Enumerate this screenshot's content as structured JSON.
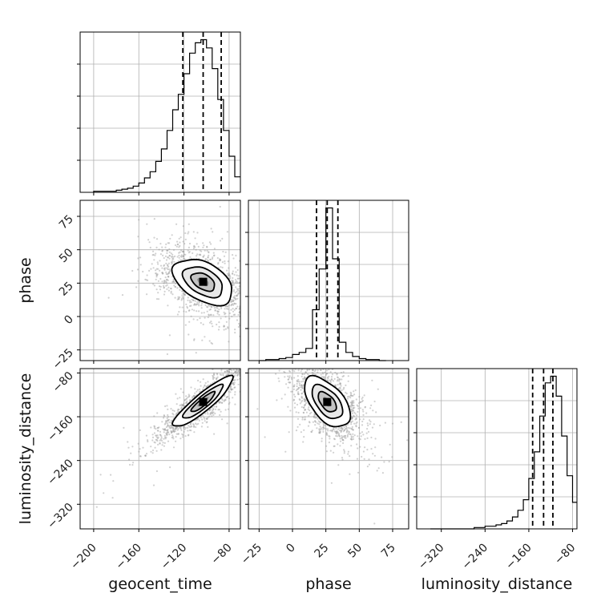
{
  "chart_data": {
    "type": "corner",
    "parameters": [
      "geocent_time",
      "phase",
      "luminosity_distance"
    ],
    "axis_labels": {
      "x": [
        "geocent_time",
        "phase",
        "luminosity_distance"
      ],
      "y": [
        "",
        "phase",
        "luminosity_distance"
      ]
    },
    "ranges": {
      "geocent_time": [
        -212,
        -70
      ],
      "phase": [
        -33,
        87
      ],
      "luminosity_distance": [
        -365,
        -72
      ]
    },
    "ticks": {
      "geocent_time": [
        -200,
        -160,
        -120,
        -80
      ],
      "phase": [
        -25,
        0,
        25,
        50,
        75
      ],
      "luminosity_distance": [
        -320,
        -240,
        -160,
        -80
      ]
    },
    "quantiles": {
      "geocent_time": [
        -121,
        -103,
        -87
      ],
      "phase": [
        18,
        26,
        34
      ],
      "luminosity_distance": [
        -153,
        -133,
        -116
      ]
    },
    "histograms": {
      "geocent_time": {
        "edges": [
          -200,
          -195,
          -190,
          -185,
          -180,
          -175,
          -170,
          -165,
          -160,
          -155,
          -150,
          -145,
          -140,
          -135,
          -130,
          -125,
          -120,
          -115,
          -110,
          -105,
          -100,
          -95,
          -90,
          -85,
          -80,
          -75,
          -70
        ],
        "counts": [
          1,
          1,
          1,
          1,
          2,
          3,
          4,
          6,
          9,
          14,
          20,
          30,
          42,
          60,
          80,
          95,
          115,
          135,
          145,
          148,
          140,
          120,
          90,
          60,
          35,
          15
        ]
      },
      "phase": {
        "edges": [
          -25,
          -20,
          -15,
          -10,
          -5,
          0,
          5,
          10,
          15,
          20,
          25,
          30,
          35,
          40,
          45,
          50,
          55,
          60,
          65,
          70
        ],
        "counts": [
          0,
          1,
          1,
          2,
          3,
          6,
          8,
          12,
          50,
          90,
          150,
          100,
          18,
          8,
          4,
          2,
          1,
          1,
          0
        ]
      },
      "luminosity_distance": {
        "edges": [
          -340,
          -330,
          -320,
          -310,
          -300,
          -290,
          -280,
          -270,
          -260,
          -250,
          -240,
          -230,
          -220,
          -210,
          -200,
          -190,
          -180,
          -170,
          -160,
          -150,
          -140,
          -130,
          -120,
          -110,
          -100,
          -90,
          -80,
          -72
        ],
        "counts": [
          0,
          0,
          0,
          0,
          0,
          0,
          0,
          0,
          1,
          1,
          2,
          2,
          3,
          4,
          6,
          9,
          14,
          22,
          38,
          58,
          85,
          110,
          115,
          100,
          70,
          40,
          20
        ]
      }
    },
    "scatter": {
      "phase_vs_geocent_time": {
        "center": [
          -103,
          26
        ],
        "std": [
          20,
          13
        ],
        "rho": -0.45,
        "n": 1400
      },
      "luminosity_distance_vs_geocent_time": {
        "center": [
          -103,
          -133
        ],
        "std": [
          20,
          35
        ],
        "rho": 0.9,
        "n": 1400
      },
      "luminosity_distance_vs_phase": {
        "center": [
          26,
          -133
        ],
        "std": [
          13,
          35
        ],
        "rho": -0.55,
        "n": 1400
      }
    },
    "style": {
      "line_color": "#000000",
      "grid": true,
      "grid_color": "#b0b0b0",
      "point_color": "#999999",
      "contour_fill_levels": [
        "#ffffff",
        "#e8e8e8",
        "#c4c4c4",
        "#8a8a8a",
        "#000000"
      ]
    }
  }
}
